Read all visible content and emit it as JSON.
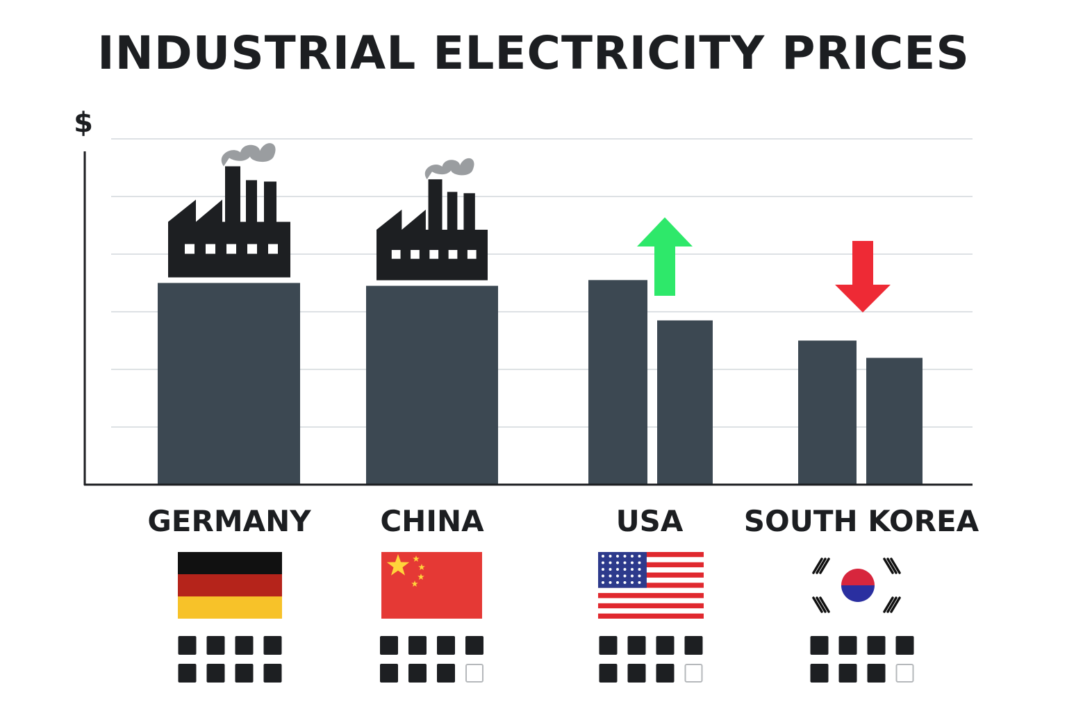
{
  "chart_data": {
    "type": "bar",
    "title": "INDUSTRIAL ELECTRICITY PRICES",
    "ylabel": "$",
    "xlabel": "",
    "ylim": [
      0,
      6
    ],
    "grid": true,
    "categories": [
      "GERMANY",
      "CHINA",
      "USA",
      "SOUTH KOREA"
    ],
    "groups": [
      {
        "category": "GERMANY",
        "values": [
          3.5
        ],
        "icon": "factory-icon",
        "flag": "germany-flag-icon",
        "squares": [
          1,
          1,
          1,
          1,
          1,
          1,
          1,
          1
        ]
      },
      {
        "category": "CHINA",
        "values": [
          3.45
        ],
        "icon": "factory-icon",
        "flag": "china-flag-icon",
        "squares": [
          1,
          1,
          1,
          1,
          1,
          1,
          1,
          0
        ]
      },
      {
        "category": "USA",
        "values": [
          3.55,
          2.85
        ],
        "icon": "up-arrow-icon",
        "flag": "usa-flag-icon",
        "squares": [
          1,
          1,
          1,
          1,
          1,
          1,
          1,
          0
        ]
      },
      {
        "category": "SOUTH KOREA",
        "values": [
          2.5,
          2.2
        ],
        "icon": "down-arrow-icon",
        "flag": "south-korea-flag-icon",
        "squares": [
          1,
          1,
          1,
          1,
          1,
          1,
          1,
          0
        ]
      }
    ]
  },
  "colors": {
    "bar": "#3c4852",
    "axis": "#1c1e21",
    "grid": "#dde1e4",
    "up_arrow": "#2ee86a",
    "down_arrow": "#ee2a35",
    "smoke": "#9a9da0",
    "square_filled": "#1d1f22",
    "square_empty": "#b5b8bb"
  }
}
